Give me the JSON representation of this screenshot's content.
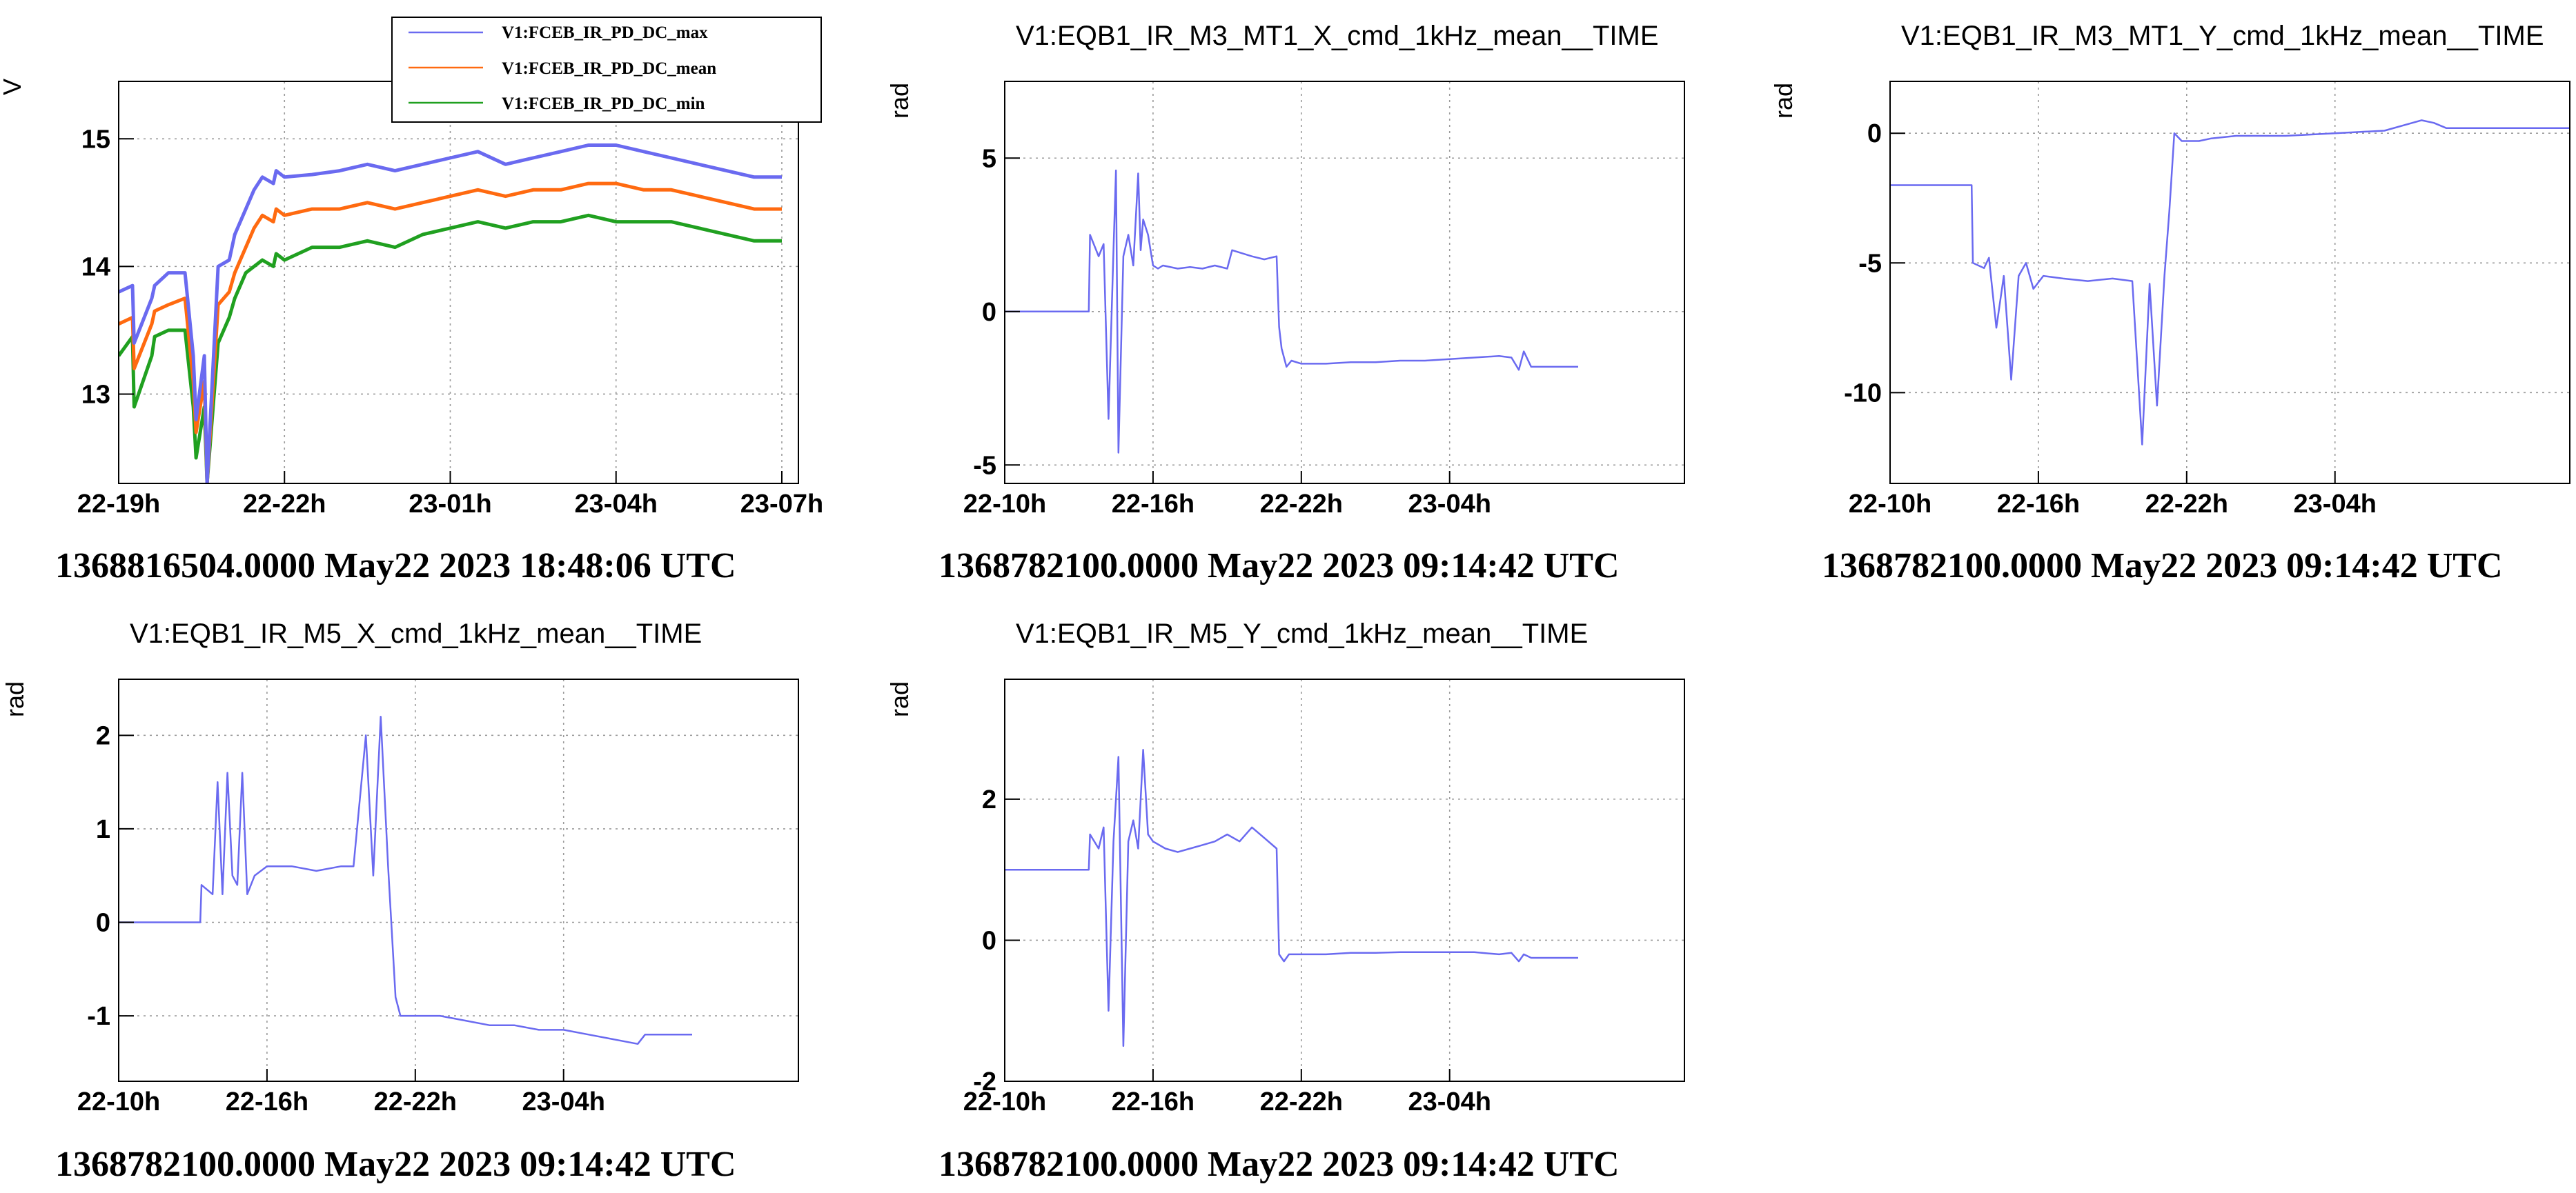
{
  "colors": {
    "max": "#6a6af0",
    "mean": "#ff6a10",
    "min": "#20a020"
  },
  "chart_data": [
    {
      "type": "line",
      "title": "",
      "ylabel": "V",
      "ylim": [
        12.3,
        15.45
      ],
      "xlim": [
        0,
        12.3
      ],
      "xticks": [
        {
          "at": 0,
          "label": "22-19h"
        },
        {
          "at": 3,
          "label": "22-22h"
        },
        {
          "at": 6,
          "label": "23-01h"
        },
        {
          "at": 9,
          "label": "23-04h"
        },
        {
          "at": 12,
          "label": "23-07h"
        }
      ],
      "yticks": [
        {
          "at": 13,
          "label": "13"
        },
        {
          "at": 14,
          "label": "14"
        },
        {
          "at": 15,
          "label": "15"
        }
      ],
      "legend": "top",
      "footer": "1368816504.0000 May22 2023 18:48:06 UTC",
      "series": [
        {
          "name": "V1:FCEB_IR_PD_DC_max",
          "color_key": "max",
          "x": [
            0,
            0.25,
            0.28,
            0.6,
            0.65,
            0.9,
            1.2,
            1.35,
            1.4,
            1.55,
            1.6,
            1.8,
            2.0,
            2.1,
            2.3,
            2.45,
            2.6,
            2.8,
            2.85,
            3.0,
            3.5,
            4.0,
            4.5,
            5.0,
            5.5,
            6.0,
            6.5,
            7.0,
            7.5,
            8.0,
            8.5,
            9.0,
            9.5,
            10.0,
            10.5,
            11.0,
            11.5,
            12.0
          ],
          "y": [
            13.8,
            13.85,
            13.4,
            13.75,
            13.85,
            13.95,
            13.95,
            13.3,
            12.8,
            13.3,
            12.3,
            14.0,
            14.05,
            14.25,
            14.45,
            14.6,
            14.7,
            14.65,
            14.75,
            14.7,
            14.72,
            14.75,
            14.8,
            14.75,
            14.8,
            14.85,
            14.9,
            14.8,
            14.85,
            14.9,
            14.95,
            14.95,
            14.9,
            14.85,
            14.8,
            14.75,
            14.7,
            14.7
          ]
        },
        {
          "name": "V1:FCEB_IR_PD_DC_mean",
          "color_key": "mean",
          "x": [
            0,
            0.25,
            0.28,
            0.6,
            0.65,
            0.9,
            1.2,
            1.35,
            1.4,
            1.55,
            1.6,
            1.8,
            2.0,
            2.1,
            2.3,
            2.45,
            2.6,
            2.8,
            2.85,
            3.0,
            3.5,
            4.0,
            4.5,
            5.0,
            5.5,
            6.0,
            6.5,
            7.0,
            7.5,
            8.0,
            8.5,
            9.0,
            9.5,
            10.0,
            10.5,
            11.0,
            11.5,
            12.0
          ],
          "y": [
            13.55,
            13.6,
            13.2,
            13.55,
            13.65,
            13.7,
            13.75,
            13.1,
            12.7,
            13.1,
            12.3,
            13.7,
            13.8,
            13.95,
            14.15,
            14.3,
            14.4,
            14.35,
            14.45,
            14.4,
            14.45,
            14.45,
            14.5,
            14.45,
            14.5,
            14.55,
            14.6,
            14.55,
            14.6,
            14.6,
            14.65,
            14.65,
            14.6,
            14.6,
            14.55,
            14.5,
            14.45,
            14.45
          ]
        },
        {
          "name": "V1:FCEB_IR_PD_DC_min",
          "color_key": "min",
          "x": [
            0,
            0.25,
            0.28,
            0.6,
            0.65,
            0.9,
            1.2,
            1.35,
            1.4,
            1.55,
            1.6,
            1.8,
            2.0,
            2.1,
            2.3,
            2.45,
            2.6,
            2.8,
            2.85,
            3.0,
            3.5,
            4.0,
            4.5,
            5.0,
            5.5,
            6.0,
            6.5,
            7.0,
            7.5,
            8.0,
            8.5,
            9.0,
            9.5,
            10.0,
            10.5,
            11.0,
            11.5,
            12.0
          ],
          "y": [
            13.3,
            13.45,
            12.9,
            13.3,
            13.45,
            13.5,
            13.5,
            12.9,
            12.5,
            12.9,
            12.3,
            13.4,
            13.6,
            13.75,
            13.95,
            14.0,
            14.05,
            14.0,
            14.1,
            14.05,
            14.15,
            14.15,
            14.2,
            14.15,
            14.25,
            14.3,
            14.35,
            14.3,
            14.35,
            14.35,
            14.4,
            14.35,
            14.35,
            14.35,
            14.3,
            14.25,
            14.2,
            14.2
          ]
        }
      ]
    },
    {
      "type": "line",
      "title": "V1:EQB1_IR_M3_MT1_X_cmd_1kHz_mean__TIME",
      "ylabel": "rad",
      "ylim": [
        -5.6,
        7.5
      ],
      "xlim": [
        0,
        27.5
      ],
      "xticks": [
        {
          "at": 0,
          "label": "22-10h"
        },
        {
          "at": 6,
          "label": "22-16h"
        },
        {
          "at": 12,
          "label": "22-22h"
        },
        {
          "at": 18,
          "label": "23-04h"
        }
      ],
      "yticks": [
        {
          "at": -5,
          "label": "-5"
        },
        {
          "at": 0,
          "label": "0"
        },
        {
          "at": 5,
          "label": "5"
        }
      ],
      "footer": "1368782100.0000 May22 2023 09:14:42 UTC",
      "series": [
        {
          "color_key": "max",
          "x": [
            -0.2,
            3.4,
            3.45,
            3.8,
            4.0,
            4.2,
            4.4,
            4.5,
            4.6,
            4.8,
            5.0,
            5.2,
            5.4,
            5.5,
            5.6,
            5.8,
            6.0,
            6.2,
            6.4,
            7.0,
            7.5,
            8.0,
            8.5,
            9.0,
            9.2,
            10.0,
            10.5,
            11.0,
            11.1,
            11.2,
            11.4,
            11.6,
            12.0,
            13.0,
            14.0,
            15.0,
            16.0,
            17.0,
            18.0,
            19.0,
            20.0,
            20.5,
            20.8,
            21.0,
            21.3,
            21.6,
            23.2
          ],
          "y": [
            0,
            0,
            2.5,
            1.8,
            2.2,
            -3.5,
            2.0,
            4.6,
            -4.6,
            1.8,
            2.5,
            1.5,
            4.5,
            2.0,
            3.0,
            2.5,
            1.5,
            1.4,
            1.5,
            1.4,
            1.45,
            1.4,
            1.5,
            1.4,
            2.0,
            1.8,
            1.7,
            1.8,
            -0.5,
            -1.2,
            -1.8,
            -1.6,
            -1.7,
            -1.7,
            -1.65,
            -1.65,
            -1.6,
            -1.6,
            -1.55,
            -1.5,
            -1.45,
            -1.5,
            -1.9,
            -1.3,
            -1.8,
            -1.8,
            -1.8
          ]
        }
      ]
    },
    {
      "type": "line",
      "title": "V1:EQB1_IR_M3_MT1_Y_cmd_1kHz_mean__TIME",
      "ylabel": "rad",
      "ylim": [
        -13.5,
        2.0
      ],
      "xlim": [
        0,
        27.5
      ],
      "xticks": [
        {
          "at": 0,
          "label": "22-10h"
        },
        {
          "at": 6,
          "label": "22-16h"
        },
        {
          "at": 12,
          "label": "22-22h"
        },
        {
          "at": 18,
          "label": "23-04h"
        }
      ],
      "yticks": [
        {
          "at": -10,
          "label": "-10"
        },
        {
          "at": -5,
          "label": "-5"
        },
        {
          "at": 0,
          "label": "0"
        }
      ],
      "footer": "1368782100.0000 May22 2023 09:14:42 UTC",
      "series": [
        {
          "color_key": "max",
          "x": [
            -0.2,
            3.3,
            3.35,
            3.8,
            4.0,
            4.3,
            4.6,
            4.9,
            5.2,
            5.5,
            5.8,
            6.2,
            7.0,
            8.0,
            9.0,
            9.8,
            10.2,
            10.5,
            10.8,
            11.1,
            11.3,
            11.5,
            11.8,
            12.5,
            13.0,
            14.0,
            16.0,
            18.0,
            20.0,
            21.5,
            22.0,
            22.5,
            27.5
          ],
          "y": [
            -2,
            -2,
            -5.0,
            -5.2,
            -4.8,
            -7.5,
            -5.5,
            -9.5,
            -5.5,
            -5.0,
            -6.0,
            -5.5,
            -5.6,
            -5.7,
            -5.6,
            -5.7,
            -12.0,
            -5.8,
            -10.5,
            -5.5,
            -3.0,
            0.0,
            -0.3,
            -0.3,
            -0.2,
            -0.1,
            -0.1,
            0.0,
            0.1,
            0.5,
            0.4,
            0.2,
            0.2
          ]
        }
      ]
    },
    {
      "type": "line",
      "title": "V1:EQB1_IR_M5_X_cmd_1kHz_mean__TIME",
      "ylabel": "rad",
      "ylim": [
        -1.7,
        2.6
      ],
      "xlim": [
        0,
        27.5
      ],
      "xticks": [
        {
          "at": 0,
          "label": "22-10h"
        },
        {
          "at": 6,
          "label": "22-16h"
        },
        {
          "at": 12,
          "label": "22-22h"
        },
        {
          "at": 18,
          "label": "23-04h"
        }
      ],
      "yticks": [
        {
          "at": -1,
          "label": "-1"
        },
        {
          "at": 0,
          "label": "0"
        },
        {
          "at": 1,
          "label": "1"
        },
        {
          "at": 2,
          "label": "2"
        }
      ],
      "footer": "1368782100.0000 May22 2023 09:14:42 UTC",
      "series": [
        {
          "color_key": "max",
          "x": [
            -0.2,
            3.3,
            3.35,
            3.8,
            4.0,
            4.2,
            4.4,
            4.6,
            4.8,
            5.0,
            5.2,
            5.5,
            6.0,
            7.0,
            8.0,
            9.0,
            9.5,
            10.0,
            10.3,
            10.6,
            10.9,
            11.2,
            11.4,
            12.0,
            13.0,
            14.0,
            15.0,
            16.0,
            17.0,
            18.0,
            19.0,
            20.0,
            21.0,
            21.3,
            21.6,
            23.2
          ],
          "y": [
            0,
            0,
            0.4,
            0.3,
            1.5,
            0.3,
            1.6,
            0.5,
            0.4,
            1.6,
            0.3,
            0.5,
            0.6,
            0.6,
            0.55,
            0.6,
            0.6,
            2.0,
            0.5,
            2.2,
            0.6,
            -0.8,
            -1.0,
            -1.0,
            -1.0,
            -1.05,
            -1.1,
            -1.1,
            -1.15,
            -1.15,
            -1.2,
            -1.25,
            -1.3,
            -1.2,
            -1.2,
            -1.2
          ]
        }
      ]
    },
    {
      "type": "line",
      "title": "V1:EQB1_IR_M5_Y_cmd_1kHz_mean__TIME",
      "ylabel": "rad",
      "ylim": [
        -2.0,
        3.7
      ],
      "xlim": [
        0,
        27.5
      ],
      "xticks": [
        {
          "at": 0,
          "label": "22-10h"
        },
        {
          "at": 6,
          "label": "22-16h"
        },
        {
          "at": 12,
          "label": "22-22h"
        },
        {
          "at": 18,
          "label": "23-04h"
        }
      ],
      "yticks": [
        {
          "at": -2,
          "label": "-2"
        },
        {
          "at": 0,
          "label": "0"
        },
        {
          "at": 2,
          "label": "2"
        }
      ],
      "footer": "1368782100.0000 May22 2023 09:14:42 UTC",
      "series": [
        {
          "color_key": "max",
          "x": [
            -0.2,
            3.4,
            3.45,
            3.8,
            4.0,
            4.2,
            4.4,
            4.6,
            4.8,
            5.0,
            5.2,
            5.4,
            5.6,
            5.8,
            6.0,
            6.5,
            7.0,
            7.5,
            8.0,
            8.5,
            9.0,
            9.5,
            10.0,
            10.5,
            11.0,
            11.1,
            11.3,
            11.5,
            12.0,
            13.0,
            14.0,
            15.0,
            16.0,
            17.0,
            18.0,
            19.0,
            20.0,
            20.5,
            20.8,
            21.0,
            21.3,
            21.6,
            23.2
          ],
          "y": [
            1.0,
            1.0,
            1.5,
            1.3,
            1.6,
            -1.0,
            1.4,
            2.6,
            -1.5,
            1.4,
            1.7,
            1.3,
            2.7,
            1.5,
            1.4,
            1.3,
            1.25,
            1.3,
            1.35,
            1.4,
            1.5,
            1.4,
            1.6,
            1.45,
            1.3,
            -0.2,
            -0.3,
            -0.2,
            -0.2,
            -0.2,
            -0.18,
            -0.18,
            -0.17,
            -0.17,
            -0.17,
            -0.17,
            -0.2,
            -0.18,
            -0.3,
            -0.2,
            -0.25,
            -0.25,
            -0.25
          ]
        }
      ]
    }
  ]
}
